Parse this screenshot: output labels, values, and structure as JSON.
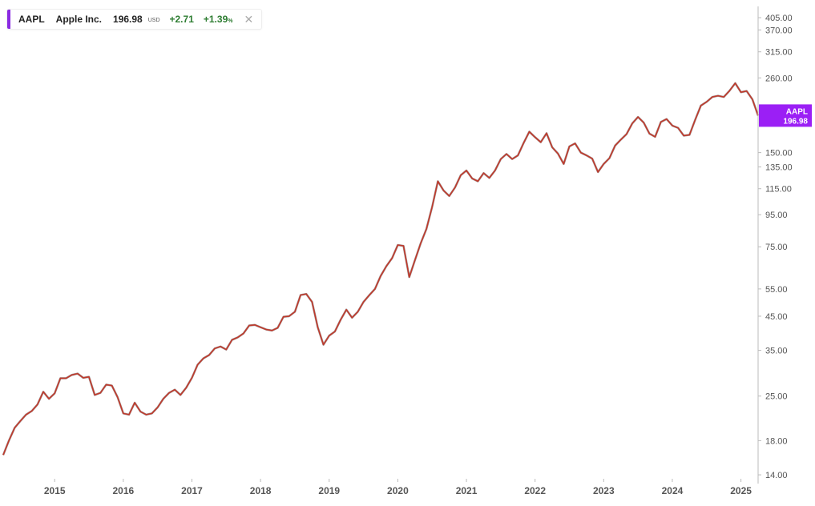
{
  "legend": {
    "ticker": "AAPL",
    "name": "Apple Inc.",
    "price": "196.98",
    "currency": "USD",
    "change": "+2.71",
    "change_pct": "+1.39",
    "pct_sign": "%",
    "close_icon": "close-icon"
  },
  "price_tag": {
    "ticker": "AAPL",
    "price": "196.98"
  },
  "colors": {
    "accent": "#8a2be2",
    "tag_bg": "#9b1ff5",
    "positive": "#2e7d32",
    "line": "#c0392b",
    "line_dark": "#3a2a2a",
    "axis_text": "#555555",
    "axis_line": "#bbbbbb"
  },
  "chart_data": {
    "type": "line",
    "scale": "log",
    "xlim": [
      "2014-04",
      "2025-04"
    ],
    "ylim": [
      13.6,
      440
    ],
    "x_ticks": [
      "2015",
      "2016",
      "2017",
      "2018",
      "2019",
      "2020",
      "2021",
      "2022",
      "2023",
      "2024",
      "2025"
    ],
    "y_ticks": [
      "405.00",
      "370.00",
      "315.00",
      "260.00",
      "150.00",
      "135.00",
      "115.00",
      "95.00",
      "75.00",
      "55.00",
      "45.00",
      "35.00",
      "25.00",
      "18.00",
      "14.00"
    ],
    "series": [
      {
        "x": [
          "2014-04",
          "2014-05",
          "2014-06",
          "2014-07",
          "2014-08",
          "2014-09",
          "2014-10",
          "2014-11",
          "2014-12",
          "2015-01",
          "2015-02",
          "2015-03",
          "2015-04",
          "2015-05",
          "2015-06",
          "2015-07",
          "2015-08",
          "2015-09",
          "2015-10",
          "2015-11",
          "2015-12",
          "2016-01",
          "2016-02",
          "2016-03",
          "2016-04",
          "2016-05",
          "2016-06",
          "2016-07",
          "2016-08",
          "2016-09",
          "2016-10",
          "2016-11",
          "2016-12",
          "2017-01",
          "2017-02",
          "2017-03",
          "2017-04",
          "2017-05",
          "2017-06",
          "2017-07",
          "2017-08",
          "2017-09",
          "2017-10",
          "2017-11",
          "2017-12",
          "2018-01",
          "2018-02",
          "2018-03",
          "2018-04",
          "2018-05",
          "2018-06",
          "2018-07",
          "2018-08",
          "2018-09",
          "2018-10",
          "2018-11",
          "2018-12",
          "2019-01",
          "2019-02",
          "2019-03",
          "2019-04",
          "2019-05",
          "2019-06",
          "2019-07",
          "2019-08",
          "2019-09",
          "2019-10",
          "2019-11",
          "2019-12",
          "2020-01",
          "2020-02",
          "2020-03",
          "2020-04",
          "2020-05",
          "2020-06",
          "2020-07",
          "2020-08",
          "2020-09",
          "2020-10",
          "2020-11",
          "2020-12",
          "2021-01",
          "2021-02",
          "2021-03",
          "2021-04",
          "2021-05",
          "2021-06",
          "2021-07",
          "2021-08",
          "2021-09",
          "2021-10",
          "2021-11",
          "2021-12",
          "2022-01",
          "2022-02",
          "2022-03",
          "2022-04",
          "2022-05",
          "2022-06",
          "2022-07",
          "2022-08",
          "2022-09",
          "2022-10",
          "2022-11",
          "2022-12",
          "2023-01",
          "2023-02",
          "2023-03",
          "2023-04",
          "2023-05",
          "2023-06",
          "2023-07",
          "2023-08",
          "2023-09",
          "2023-10",
          "2023-11",
          "2023-12",
          "2024-01",
          "2024-02",
          "2024-03",
          "2024-04",
          "2024-05",
          "2024-06",
          "2024-07",
          "2024-08",
          "2024-09",
          "2024-10",
          "2024-11",
          "2024-12",
          "2025-01",
          "2025-02",
          "2025-03",
          "2025-04"
        ],
        "y": [
          16.2,
          18.0,
          19.8,
          20.8,
          21.8,
          22.4,
          23.5,
          25.8,
          24.5,
          25.5,
          28.5,
          28.5,
          29.2,
          29.5,
          28.6,
          28.8,
          25.2,
          25.6,
          27.2,
          27.0,
          24.8,
          22.0,
          21.8,
          23.8,
          22.3,
          21.8,
          22.0,
          23.0,
          24.5,
          25.6,
          26.2,
          25.2,
          26.6,
          28.6,
          31.5,
          33.0,
          33.8,
          35.5,
          36.0,
          35.2,
          37.8,
          38.5,
          39.6,
          42.0,
          42.2,
          41.5,
          40.8,
          40.5,
          41.3,
          44.8,
          45.0,
          46.5,
          52.6,
          53.0,
          50.0,
          41.5,
          36.5,
          39.0,
          40.2,
          43.8,
          47.2,
          44.5,
          46.5,
          50.0,
          52.5,
          55.0,
          60.5,
          65.0,
          69.0,
          76.0,
          75.5,
          60.0,
          68.0,
          77.0,
          85.5,
          100.5,
          121.5,
          113.5,
          109.0,
          116.0,
          127.0,
          131.5,
          124.0,
          121.5,
          129.0,
          124.5,
          131.5,
          143.0,
          148.5,
          143.0,
          147.0,
          161.0,
          175.0,
          168.0,
          162.0,
          173.0,
          156.0,
          149.0,
          138.0,
          157.0,
          160.5,
          150.0,
          147.0,
          143.5,
          130.0,
          138.0,
          144.0,
          158.0,
          165.0,
          172.0,
          186.0,
          195.0,
          187.0,
          172.5,
          168.5,
          188.0,
          192.0,
          183.0,
          180.0,
          170.0,
          171.0,
          191.0,
          212.0,
          218.0,
          226.0,
          228.0,
          226.0,
          236.5,
          250.0,
          234.0,
          236.0,
          222.0,
          196.98
        ]
      }
    ]
  }
}
